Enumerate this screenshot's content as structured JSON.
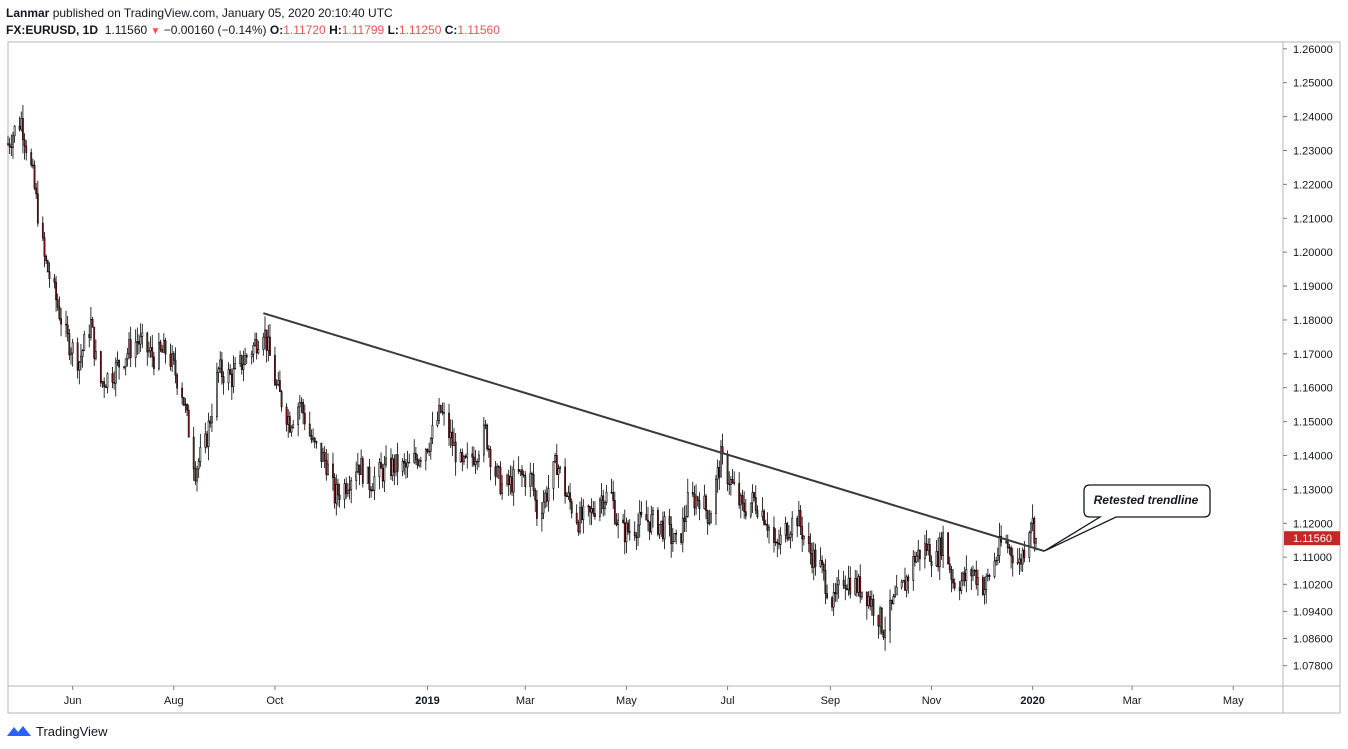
{
  "header": {
    "publisher": "Lanmar",
    "published_text": " published on TradingView.com, January 05, 2020 20:10:40 UTC",
    "symbol": "FX:EURUSD, 1D",
    "last": "1.11560",
    "change": "−0.00160 (−0.14%)",
    "o_label": "O:",
    "o_value": "1.11720",
    "h_label": "H:",
    "h_value": "1.11799",
    "l_label": "L:",
    "l_value": "1.11250",
    "c_label": "C:",
    "c_value": "1.11560"
  },
  "footer": {
    "brand": "TradingView"
  },
  "colors": {
    "up": "#ffffff",
    "down": "#b71c1c",
    "wick": "#000000",
    "trendline": "#3a3a3a",
    "price_tag": "#c62828"
  },
  "chart_data": {
    "type": "candlestick",
    "symbol": "FX:EURUSD",
    "interval": "1D",
    "x_range": [
      "2018-04-23",
      "2020-05-31"
    ],
    "ylim": [
      1.072,
      1.262
    ],
    "y_ticks": [
      "1.26000",
      "1.25000",
      "1.24000",
      "1.23000",
      "1.22000",
      "1.21000",
      "1.20000",
      "1.19000",
      "1.18000",
      "1.17000",
      "1.16000",
      "1.15000",
      "1.14000",
      "1.13000",
      "1.12000",
      "1.11000",
      "1.10200",
      "1.09400",
      "1.08600",
      "1.07800"
    ],
    "x_ticks": [
      {
        "label": "Jun",
        "date": "2018-06-01",
        "bold": false
      },
      {
        "label": "Aug",
        "date": "2018-08-01",
        "bold": false
      },
      {
        "label": "Oct",
        "date": "2018-10-01",
        "bold": false
      },
      {
        "label": "2019",
        "date": "2019-01-01",
        "bold": true
      },
      {
        "label": "Mar",
        "date": "2019-03-01",
        "bold": false
      },
      {
        "label": "May",
        "date": "2019-05-01",
        "bold": false
      },
      {
        "label": "Jul",
        "date": "2019-07-01",
        "bold": false
      },
      {
        "label": "Sep",
        "date": "2019-09-01",
        "bold": false
      },
      {
        "label": "Nov",
        "date": "2019-11-01",
        "bold": false
      },
      {
        "label": "2020",
        "date": "2020-01-01",
        "bold": true
      },
      {
        "label": "Mar",
        "date": "2020-03-01",
        "bold": false
      },
      {
        "label": "May",
        "date": "2020-05-01",
        "bold": false
      }
    ],
    "last_price": "1.11560",
    "last_price_value": 1.1156,
    "path_anchors": [
      [
        "2018-04-23",
        1.232
      ],
      [
        "2018-04-27",
        1.236
      ],
      [
        "2018-05-01",
        1.239
      ],
      [
        "2018-05-08",
        1.222
      ],
      [
        "2018-05-15",
        1.198
      ],
      [
        "2018-05-22",
        1.186
      ],
      [
        "2018-05-28",
        1.175
      ],
      [
        "2018-06-05",
        1.168
      ],
      [
        "2018-06-12",
        1.179
      ],
      [
        "2018-06-17",
        1.161
      ],
      [
        "2018-06-26",
        1.165
      ],
      [
        "2018-07-03",
        1.17
      ],
      [
        "2018-07-10",
        1.174
      ],
      [
        "2018-07-20",
        1.169
      ],
      [
        "2018-07-28",
        1.171
      ],
      [
        "2018-08-06",
        1.159
      ],
      [
        "2018-08-14",
        1.136
      ],
      [
        "2018-08-20",
        1.143
      ],
      [
        "2018-08-28",
        1.165
      ],
      [
        "2018-09-05",
        1.163
      ],
      [
        "2018-09-12",
        1.168
      ],
      [
        "2018-09-18",
        1.172
      ],
      [
        "2018-09-24",
        1.178
      ],
      [
        "2018-10-02",
        1.16
      ],
      [
        "2018-10-10",
        1.15
      ],
      [
        "2018-10-16",
        1.156
      ],
      [
        "2018-10-24",
        1.143
      ],
      [
        "2018-11-01",
        1.138
      ],
      [
        "2018-11-06",
        1.128
      ],
      [
        "2018-11-12",
        1.131
      ],
      [
        "2018-11-20",
        1.138
      ],
      [
        "2018-11-27",
        1.132
      ],
      [
        "2018-12-04",
        1.135
      ],
      [
        "2018-12-12",
        1.137
      ],
      [
        "2018-12-20",
        1.136
      ],
      [
        "2018-12-28",
        1.141
      ],
      [
        "2019-01-03",
        1.145
      ],
      [
        "2019-01-09",
        1.153
      ],
      [
        "2019-01-15",
        1.145
      ],
      [
        "2019-01-22",
        1.136
      ],
      [
        "2019-01-30",
        1.141
      ],
      [
        "2019-02-05",
        1.147
      ],
      [
        "2019-02-10",
        1.136
      ],
      [
        "2019-02-16",
        1.13
      ],
      [
        "2019-02-25",
        1.134
      ],
      [
        "2019-03-05",
        1.133
      ],
      [
        "2019-03-08",
        1.123
      ],
      [
        "2019-03-14",
        1.129
      ],
      [
        "2019-03-20",
        1.138
      ],
      [
        "2019-03-26",
        1.128
      ],
      [
        "2019-04-02",
        1.121
      ],
      [
        "2019-04-09",
        1.122
      ],
      [
        "2019-04-15",
        1.128
      ],
      [
        "2019-04-22",
        1.128
      ],
      [
        "2019-04-27",
        1.117
      ],
      [
        "2019-05-03",
        1.118
      ],
      [
        "2019-05-12",
        1.121
      ],
      [
        "2019-05-20",
        1.12
      ],
      [
        "2019-05-25",
        1.118
      ],
      [
        "2019-06-01",
        1.113
      ],
      [
        "2019-06-07",
        1.126
      ],
      [
        "2019-06-14",
        1.128
      ],
      [
        "2019-06-20",
        1.122
      ],
      [
        "2019-06-27",
        1.139
      ],
      [
        "2019-07-03",
        1.132
      ],
      [
        "2019-07-10",
        1.124
      ],
      [
        "2019-07-17",
        1.127
      ],
      [
        "2019-07-24",
        1.122
      ],
      [
        "2019-07-30",
        1.112
      ],
      [
        "2019-08-05",
        1.118
      ],
      [
        "2019-08-12",
        1.122
      ],
      [
        "2019-08-19",
        1.112
      ],
      [
        "2019-08-26",
        1.107
      ],
      [
        "2019-09-03",
        1.096
      ],
      [
        "2019-09-09",
        1.104
      ],
      [
        "2019-09-15",
        1.102
      ],
      [
        "2019-09-22",
        1.1
      ],
      [
        "2019-09-29",
        1.094
      ],
      [
        "2019-10-03",
        1.089
      ],
      [
        "2019-10-09",
        1.096
      ],
      [
        "2019-10-15",
        1.101
      ],
      [
        "2019-10-22",
        1.11
      ],
      [
        "2019-10-29",
        1.113
      ],
      [
        "2019-11-04",
        1.109
      ],
      [
        "2019-11-08",
        1.116
      ],
      [
        "2019-11-14",
        1.103
      ],
      [
        "2019-11-20",
        1.103
      ],
      [
        "2019-11-26",
        1.106
      ],
      [
        "2019-12-03",
        1.101
      ],
      [
        "2019-12-10",
        1.11
      ],
      [
        "2019-12-14",
        1.115
      ],
      [
        "2019-12-19",
        1.112
      ],
      [
        "2019-12-24",
        1.108
      ],
      [
        "2019-12-27",
        1.113
      ],
      [
        "2019-12-31",
        1.122
      ],
      [
        "2020-01-03",
        1.1156
      ]
    ],
    "trendline": {
      "start": [
        "2018-09-24",
        1.182
      ],
      "end": [
        "2020-01-08",
        1.1118
      ]
    },
    "annotations": [
      {
        "text": "Retested trendline",
        "target": [
          "2020-01-08",
          1.1118
        ]
      }
    ]
  }
}
